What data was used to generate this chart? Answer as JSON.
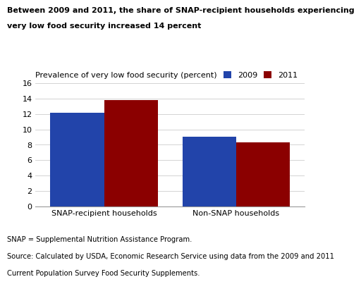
{
  "title_line1": "Between 2009 and 2011, the share of SNAP-recipient households experiencing",
  "title_line2": "very low food security increased 14 percent",
  "ylabel": "Prevalence of very low food security (percent)",
  "categories": [
    "SNAP-recipient households",
    "Non-SNAP households"
  ],
  "values_2009": [
    12.1,
    9.0
  ],
  "values_2011": [
    13.8,
    8.3
  ],
  "color_2009": "#2244aa",
  "color_2011": "#8b0000",
  "ylim": [
    0,
    16
  ],
  "yticks": [
    0,
    2,
    4,
    6,
    8,
    10,
    12,
    14,
    16
  ],
  "legend_labels": [
    "2009",
    "2011"
  ],
  "footnote1": "SNAP = Supplemental Nutrition Assistance Program.",
  "footnote2": "Source: Calculated by USDA, Economic Research Service using data from the 2009 and 2011",
  "footnote3": "Current Population Survey Food Security Supplements.",
  "title_fontsize": 8.0,
  "ylabel_fontsize": 8.0,
  "tick_fontsize": 8.0,
  "legend_fontsize": 8.0,
  "footnote_fontsize": 7.2,
  "group_centers": [
    0.28,
    0.82
  ],
  "bar_width": 0.22,
  "xlim": [
    0.0,
    1.1
  ]
}
